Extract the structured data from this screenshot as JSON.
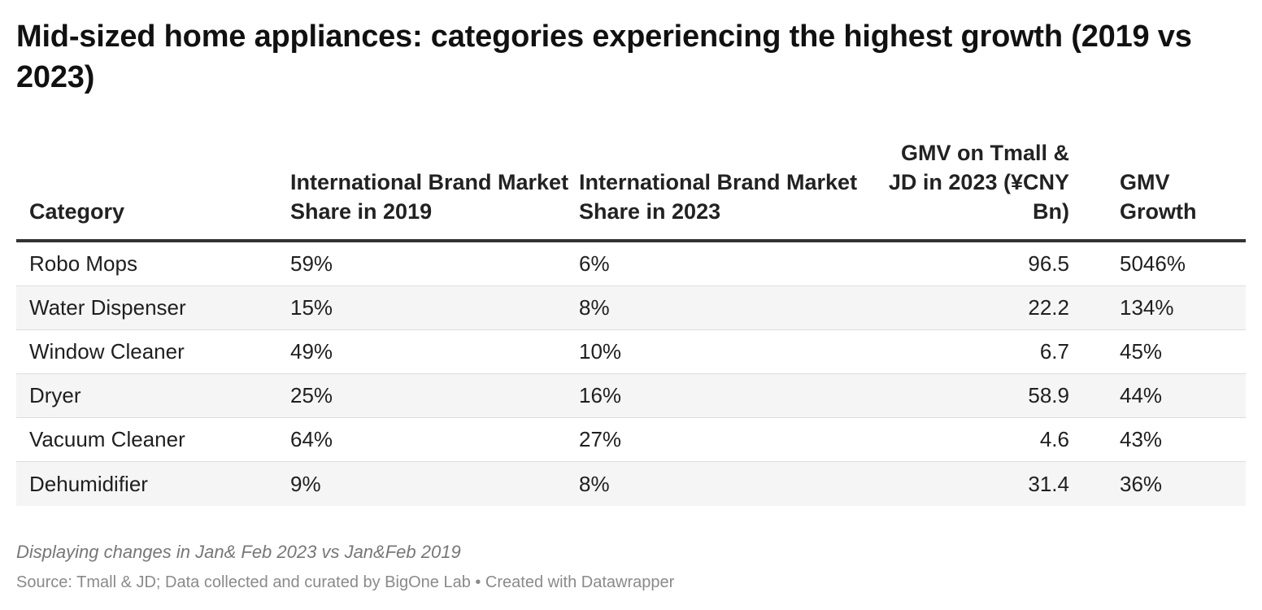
{
  "title": "Mid-sized home appliances: categories experiencing the highest growth (2019 vs 2023)",
  "notes": "Displaying changes in Jan& Feb 2023 vs Jan&Feb 2019",
  "source": "Source: Tmall & JD; Data collected and curated by BigOne Lab • Created with Datawrapper",
  "chart_data": {
    "type": "table",
    "columns": [
      "Category",
      "International Brand Market Share in 2019",
      "International Brand Market Share in 2023",
      "GMV on Tmall & JD in 2023 (¥CNY Bn)",
      "GMV Growth"
    ],
    "rows": [
      [
        "Robo Mops",
        "59%",
        "6%",
        "96.5",
        "5046%"
      ],
      [
        "Water Dispenser",
        "15%",
        "8%",
        "22.2",
        "134%"
      ],
      [
        "Window Cleaner",
        "49%",
        "10%",
        "6.7",
        "45%"
      ],
      [
        "Dryer",
        "25%",
        "16%",
        "58.9",
        "44%"
      ],
      [
        "Vacuum Cleaner",
        "64%",
        "27%",
        "4.6",
        "43%"
      ],
      [
        "Dehumidifier",
        "9%",
        "8%",
        "31.4",
        "36%"
      ]
    ]
  }
}
